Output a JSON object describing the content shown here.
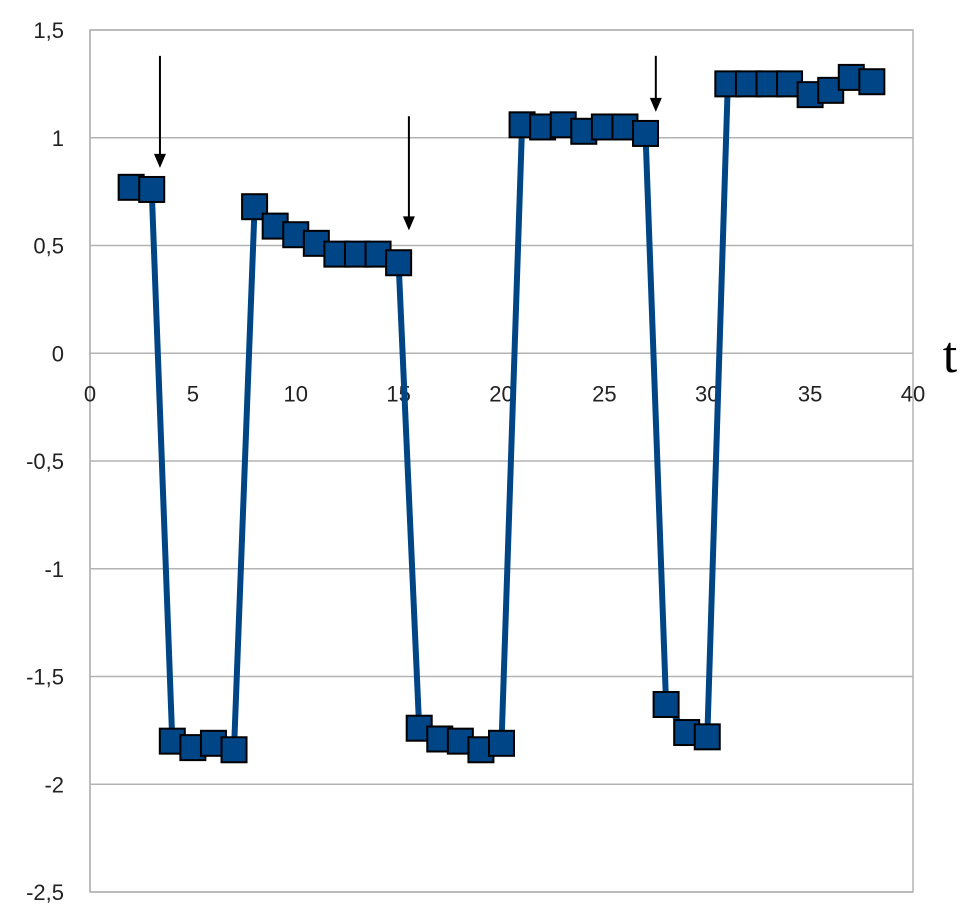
{
  "chart_data": {
    "type": "line",
    "title": "",
    "xlabel": "t",
    "ylabel": "",
    "xlim": [
      0,
      40
    ],
    "ylim": [
      -2.5,
      1.5
    ],
    "x_ticks": [
      "0",
      "5",
      "10",
      "15",
      "20",
      "25",
      "30",
      "35",
      "40"
    ],
    "y_ticks": [
      "1,5",
      "1",
      "0,5",
      "0",
      "-0,5",
      "-1",
      "-1,5",
      "-2",
      "-2,5"
    ],
    "grid": "horizontal",
    "legend": "none",
    "series": [
      {
        "color": "#004586",
        "marker": "square",
        "x": [
          2,
          3,
          4,
          5,
          6,
          7,
          8,
          9,
          10,
          11,
          12,
          13,
          14,
          15,
          16,
          17,
          18,
          19,
          20,
          21,
          22,
          23,
          24,
          25,
          26,
          27,
          28,
          29,
          30,
          31,
          32,
          33,
          34,
          35,
          36,
          37,
          38
        ],
        "y": [
          0.77,
          0.76,
          -1.8,
          -1.83,
          -1.81,
          -1.84,
          0.68,
          0.59,
          0.55,
          0.51,
          0.46,
          0.46,
          0.46,
          0.42,
          -1.74,
          -1.79,
          -1.8,
          -1.84,
          -1.81,
          1.06,
          1.05,
          1.06,
          1.03,
          1.05,
          1.05,
          1.02,
          -1.63,
          -1.76,
          -1.78,
          1.25,
          1.25,
          1.25,
          1.25,
          1.2,
          1.22,
          1.28,
          1.26
        ]
      }
    ],
    "annotations": [
      {
        "type": "arrow",
        "x": 3.4,
        "y_from": 1.38,
        "y_to": 0.86
      },
      {
        "type": "arrow",
        "x": 15.5,
        "y_from": 1.1,
        "y_to": 0.57
      },
      {
        "type": "arrow",
        "x": 27.5,
        "y_from": 1.38,
        "y_to": 1.12
      }
    ]
  }
}
